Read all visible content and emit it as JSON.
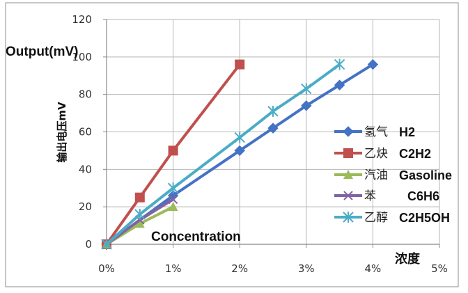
{
  "chart_data": {
    "type": "line",
    "ylabel": "输出电压mV",
    "ylabel_en": "Output(mV)",
    "xlabel": "浓度",
    "xlabel_en": "Concentration",
    "x_ticks": [
      "0%",
      "1%",
      "2%",
      "3%",
      "4%",
      "5%"
    ],
    "y_ticks": [
      "0",
      "20",
      "40",
      "60",
      "80",
      "100",
      "120"
    ],
    "xlim": [
      0,
      5
    ],
    "ylim": [
      0,
      120
    ],
    "grid": true,
    "legend_position": "right",
    "series": [
      {
        "name": "氢气",
        "name_en": "H2",
        "color": "#4472C4",
        "marker": "diamond",
        "x": [
          0,
          1,
          2,
          2.5,
          3,
          3.5,
          4
        ],
        "y": [
          0,
          26,
          50,
          62,
          74,
          85,
          96
        ]
      },
      {
        "name": "乙炔",
        "name_en": "C2H2",
        "color": "#C0504D",
        "marker": "square",
        "x": [
          0,
          0.5,
          1,
          2
        ],
        "y": [
          0,
          25,
          50,
          96
        ]
      },
      {
        "name": "汽油",
        "name_en": "Gasoline",
        "color": "#9BBB59",
        "marker": "triangle",
        "x": [
          0,
          0.5,
          1
        ],
        "y": [
          0,
          11,
          20
        ]
      },
      {
        "name": "苯",
        "name_en": "C6H6",
        "color": "#8064A2",
        "marker": "x",
        "x": [
          0,
          0.5,
          1
        ],
        "y": [
          0,
          13,
          24
        ]
      },
      {
        "name": "乙醇",
        "name_en": "C2H5OH",
        "color": "#4BACC6",
        "marker": "star",
        "x": [
          0,
          0.5,
          1,
          2,
          2.5,
          3,
          3.5
        ],
        "y": [
          0,
          16,
          30,
          57,
          71,
          83,
          96
        ]
      }
    ]
  }
}
